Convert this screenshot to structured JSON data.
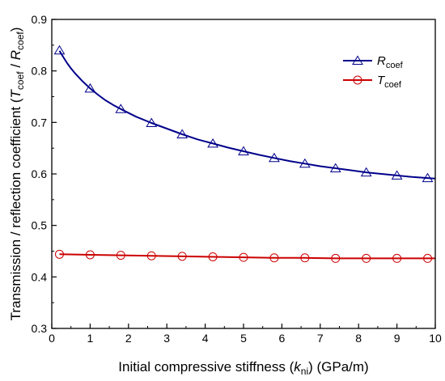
{
  "chart_data": {
    "type": "line",
    "xlabel": {
      "prefix": "Initial compressive stiffness (",
      "var": "k",
      "sub": "ni",
      "suffix": ") (GPa/m)"
    },
    "ylabel": {
      "prefix": "Transmission / reflection coefficient (",
      "var1": "T",
      "sub1": "coef",
      "mid": " / ",
      "var2": "R",
      "sub2": "coef",
      "suffix": ")"
    },
    "xlim": [
      0,
      10
    ],
    "ylim": [
      0.3,
      0.9
    ],
    "xticks": [
      "0",
      "1",
      "2",
      "3",
      "4",
      "5",
      "6",
      "7",
      "8",
      "9",
      "10"
    ],
    "yticks": [
      "0.3",
      "0.4",
      "0.5",
      "0.6",
      "0.7",
      "0.8",
      "0.9"
    ],
    "grid": false,
    "legend_position": "top-right",
    "series": [
      {
        "name": "R",
        "name_sub": "coef",
        "color": "#00008b",
        "marker": "triangle",
        "line_x": [
          0.2,
          0.3,
          0.4,
          0.5,
          0.6,
          0.8,
          1.0,
          1.2,
          1.4,
          1.6,
          1.8,
          2.2,
          2.6,
          3.0,
          3.4,
          3.8,
          4.2,
          4.6,
          5.0,
          5.4,
          5.8,
          6.2,
          6.6,
          7.0,
          7.4,
          7.8,
          8.2,
          8.6,
          9.0,
          9.4,
          9.8,
          10.0
        ],
        "line_y": [
          0.839,
          0.827,
          0.815,
          0.805,
          0.796,
          0.78,
          0.766,
          0.754,
          0.743,
          0.734,
          0.726,
          0.711,
          0.699,
          0.688,
          0.677,
          0.667,
          0.659,
          0.651,
          0.644,
          0.637,
          0.631,
          0.625,
          0.62,
          0.615,
          0.611,
          0.607,
          0.603,
          0.6,
          0.597,
          0.594,
          0.592,
          0.591
        ],
        "markers_x": [
          0.2,
          1.0,
          1.8,
          2.6,
          3.4,
          4.2,
          5.0,
          5.8,
          6.6,
          7.4,
          8.2,
          9.0,
          9.8
        ],
        "markers_y": [
          0.84,
          0.766,
          0.726,
          0.699,
          0.677,
          0.659,
          0.644,
          0.631,
          0.62,
          0.611,
          0.603,
          0.597,
          0.592
        ]
      },
      {
        "name": "T",
        "name_sub": "coef",
        "color": "#cc0000",
        "marker": "circle",
        "line_x": [
          0.2,
          1.0,
          1.8,
          2.6,
          3.4,
          4.2,
          5.0,
          5.8,
          6.6,
          7.4,
          8.2,
          9.0,
          9.8,
          10.0
        ],
        "line_y": [
          0.444,
          0.443,
          0.442,
          0.441,
          0.44,
          0.439,
          0.438,
          0.437,
          0.437,
          0.436,
          0.436,
          0.436,
          0.436,
          0.436
        ],
        "markers_x": [
          0.2,
          1.0,
          1.8,
          2.6,
          3.4,
          4.2,
          5.0,
          5.8,
          6.6,
          7.4,
          8.2,
          9.0,
          9.8
        ],
        "markers_y": [
          0.444,
          0.443,
          0.442,
          0.441,
          0.44,
          0.439,
          0.438,
          0.437,
          0.437,
          0.436,
          0.436,
          0.436,
          0.436
        ]
      }
    ]
  }
}
